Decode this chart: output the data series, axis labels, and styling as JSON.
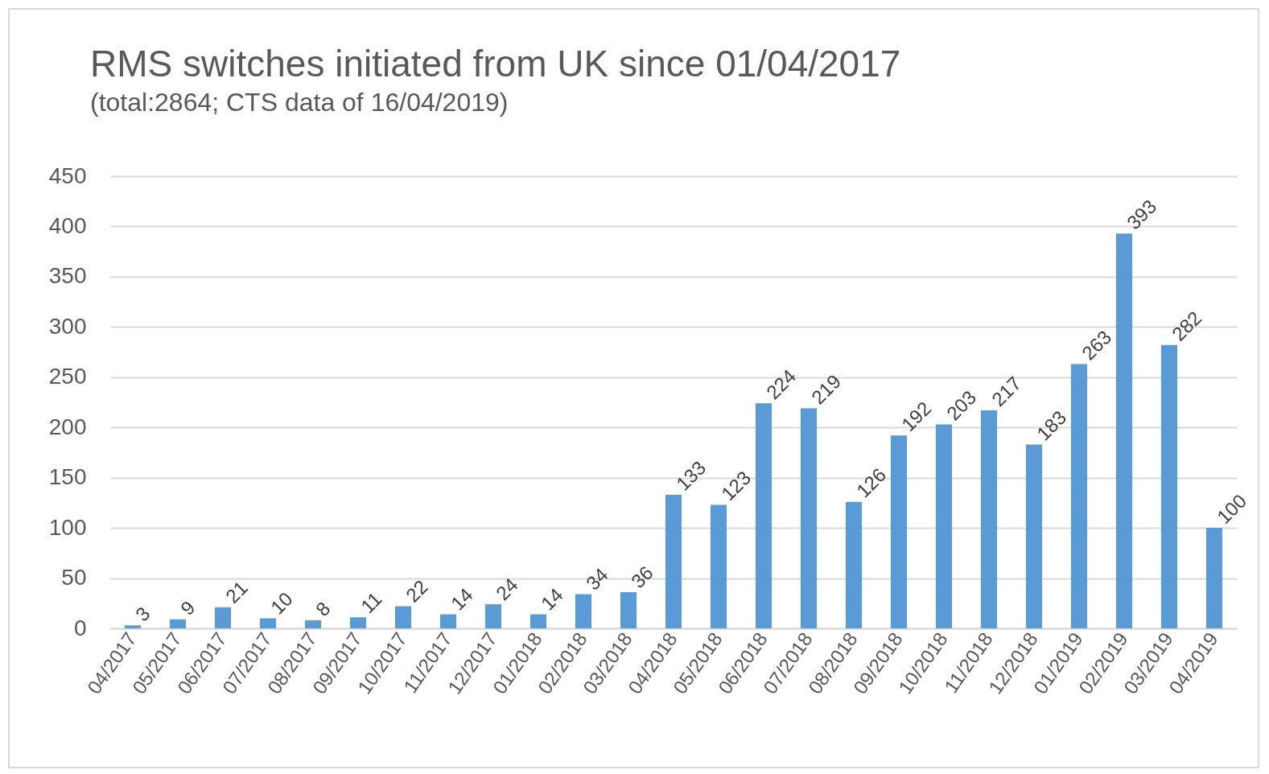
{
  "chart_data": {
    "type": "bar",
    "title": "RMS switches initiated from UK since 01/04/2017",
    "subtitle": "(total:2864; CTS data of 16/04/2019)",
    "categories": [
      "04/2017",
      "05/2017",
      "06/2017",
      "07/2017",
      "08/2017",
      "09/2017",
      "10/2017",
      "11/2017",
      "12/2017",
      "01/2018",
      "02/2018",
      "03/2018",
      "04/2018",
      "05/2018",
      "06/2018",
      "07/2018",
      "08/2018",
      "09/2018",
      "10/2018",
      "11/2018",
      "12/2018",
      "01/2019",
      "02/2019",
      "03/2019",
      "04/2019"
    ],
    "values": [
      3,
      9,
      21,
      10,
      8,
      11,
      22,
      14,
      24,
      14,
      34,
      36,
      133,
      123,
      224,
      219,
      126,
      192,
      203,
      217,
      183,
      263,
      393,
      282,
      100
    ],
    "color": "#5b9bd5",
    "ylim": [
      0,
      450
    ],
    "yticks": [
      0,
      50,
      100,
      150,
      200,
      250,
      300,
      350,
      400,
      450
    ],
    "grid": "y",
    "data_labels": true
  }
}
